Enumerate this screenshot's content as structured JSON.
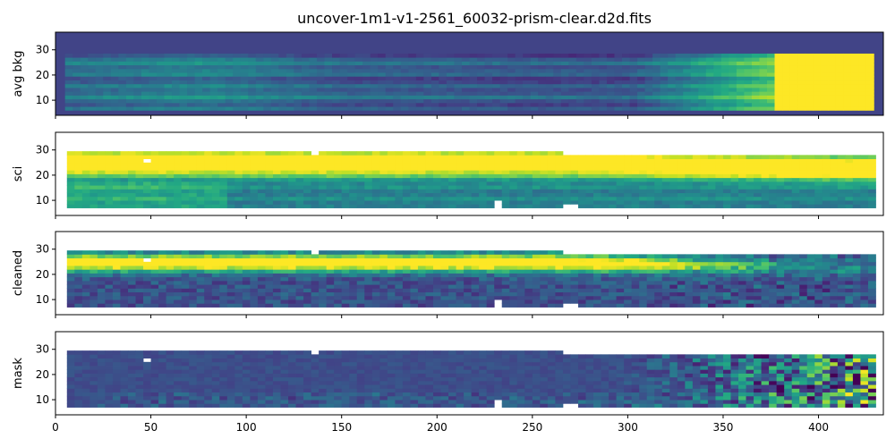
{
  "chart_data": {
    "type": "heatmap",
    "title": "uncover-1m1-v1-2561_60032-prism-clear.d2d.fits",
    "colormap": "viridis",
    "sharex": true,
    "xlim": [
      0,
      434
    ],
    "x_ticks": [
      0,
      50,
      100,
      150,
      200,
      250,
      300,
      350,
      400
    ],
    "panels": [
      {
        "ylabel": "avg bkg",
        "ylim": [
          4,
          37
        ],
        "y_ticks": [
          10,
          20,
          30
        ],
        "background": "#414487",
        "description": "Smooth background model; bright horizontal bands; saturated (yellow) region beyond x~375",
        "rows": [
          6,
          28.5
        ],
        "cols": [
          5,
          428
        ]
      },
      {
        "ylabel": "sci",
        "ylim": [
          4,
          37
        ],
        "y_ticks": [
          10,
          20,
          30
        ],
        "background": "#ffffff",
        "description": "Science frame; saturated trace across full width; masked pixels shown white",
        "rows": [
          7,
          28.5
        ],
        "cols": [
          6,
          427
        ]
      },
      {
        "ylabel": "cleaned",
        "ylim": [
          4,
          37
        ],
        "y_ticks": [
          10,
          20,
          30
        ],
        "background": "#ffffff",
        "description": "Background-subtracted frame; bright trace centered near y~24 fading toward x>300",
        "rows": [
          7,
          28.5
        ],
        "cols": [
          6,
          427
        ]
      },
      {
        "ylabel": "mask",
        "ylim": [
          4,
          37
        ],
        "y_ticks": [
          10,
          20,
          30
        ],
        "background": "#ffffff",
        "description": "Mask frame; mostly flat dark blue with noisy structure increasing toward x>300",
        "rows": [
          7,
          28.5
        ],
        "cols": [
          6,
          427
        ]
      }
    ]
  }
}
